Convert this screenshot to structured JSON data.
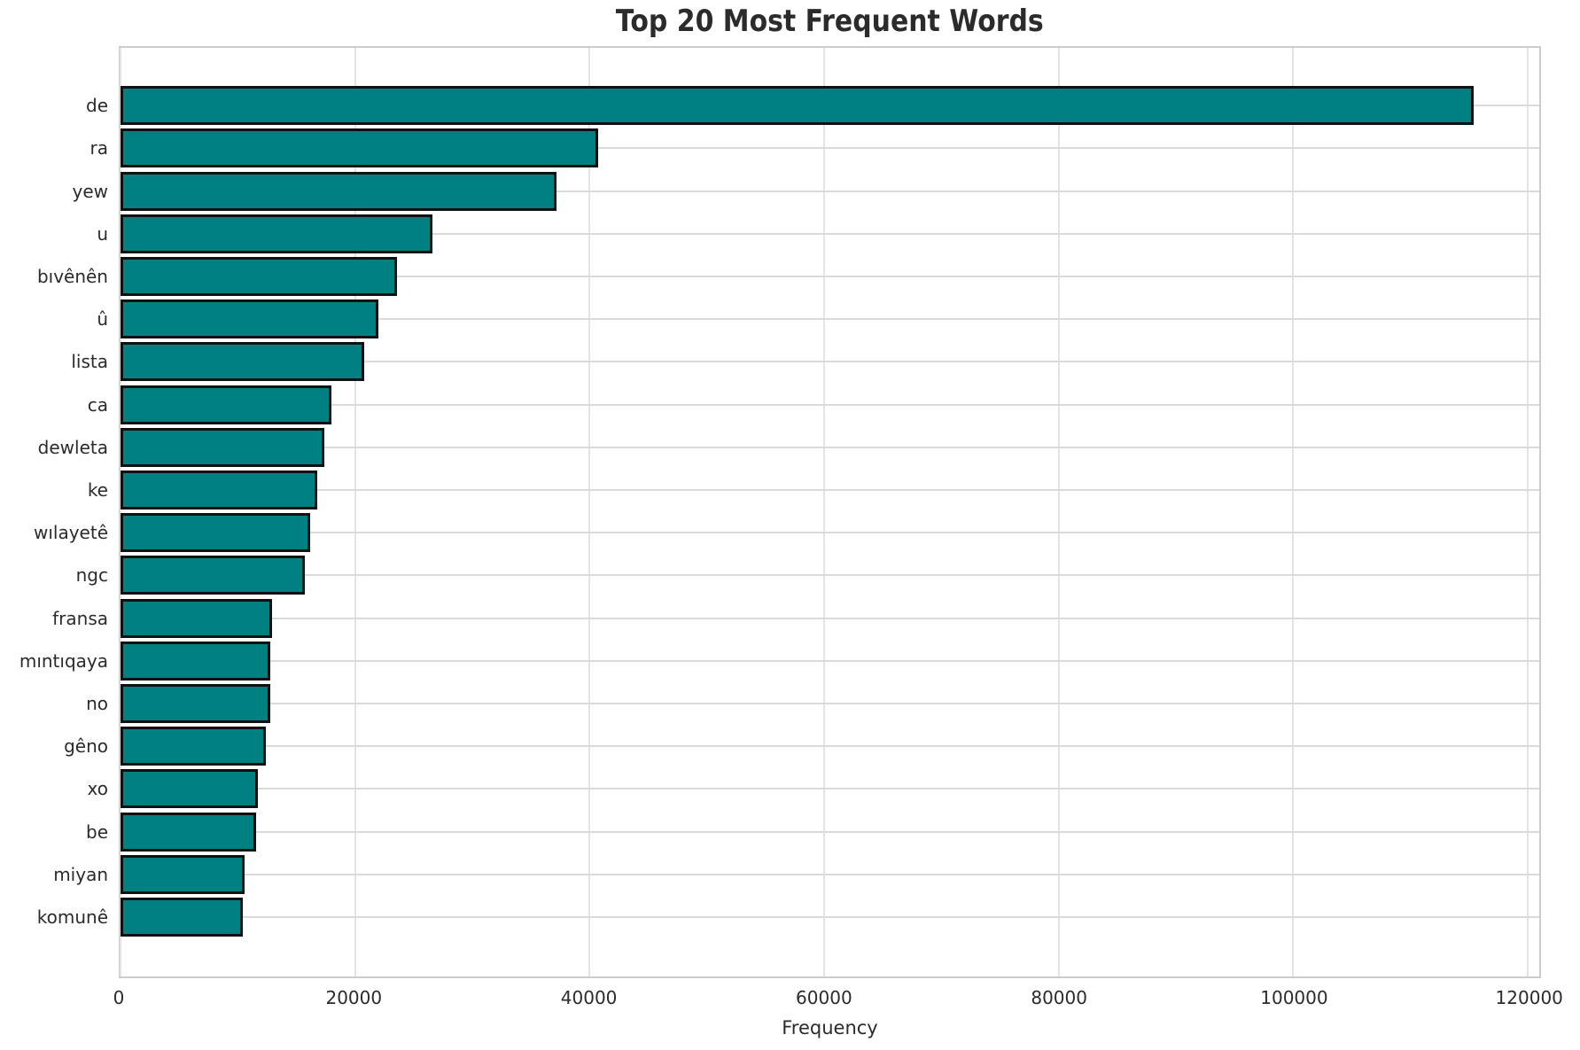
{
  "chart_data": {
    "type": "bar",
    "orientation": "horizontal",
    "title": "Top 20 Most Frequent Words",
    "xlabel": "Frequency",
    "ylabel": "",
    "categories": [
      "de",
      "ra",
      "yew",
      "u",
      "bıvênên",
      "û",
      "lista",
      "ca",
      "dewleta",
      "ke",
      "wılayetê",
      "ngc",
      "fransa",
      "mıntıqaya",
      "no",
      "gêno",
      "xo",
      "be",
      "miyan",
      "komunê"
    ],
    "values": [
      115400,
      40700,
      37200,
      26600,
      23600,
      22000,
      20800,
      18000,
      17400,
      16800,
      16200,
      15700,
      12900,
      12800,
      12800,
      12400,
      11700,
      11600,
      10600,
      10400
    ],
    "xlim": [
      0,
      120000
    ],
    "axis_right_value": 121000,
    "x_ticks": [
      0,
      20000,
      40000,
      60000,
      80000,
      100000,
      120000
    ],
    "x_tick_labels": [
      "0",
      "20000",
      "40000",
      "60000",
      "80000",
      "100000",
      "120000"
    ],
    "grid": true,
    "legend_position": "none",
    "colors": {
      "bar_fill": "#008080",
      "bar_edge": "#111111",
      "gridline_vertical": "#e4e4e4",
      "gridline_horizontal": "#dadada",
      "plot_border": "#cccccc",
      "text": "#2b2b2b",
      "background": "#ffffff"
    }
  }
}
